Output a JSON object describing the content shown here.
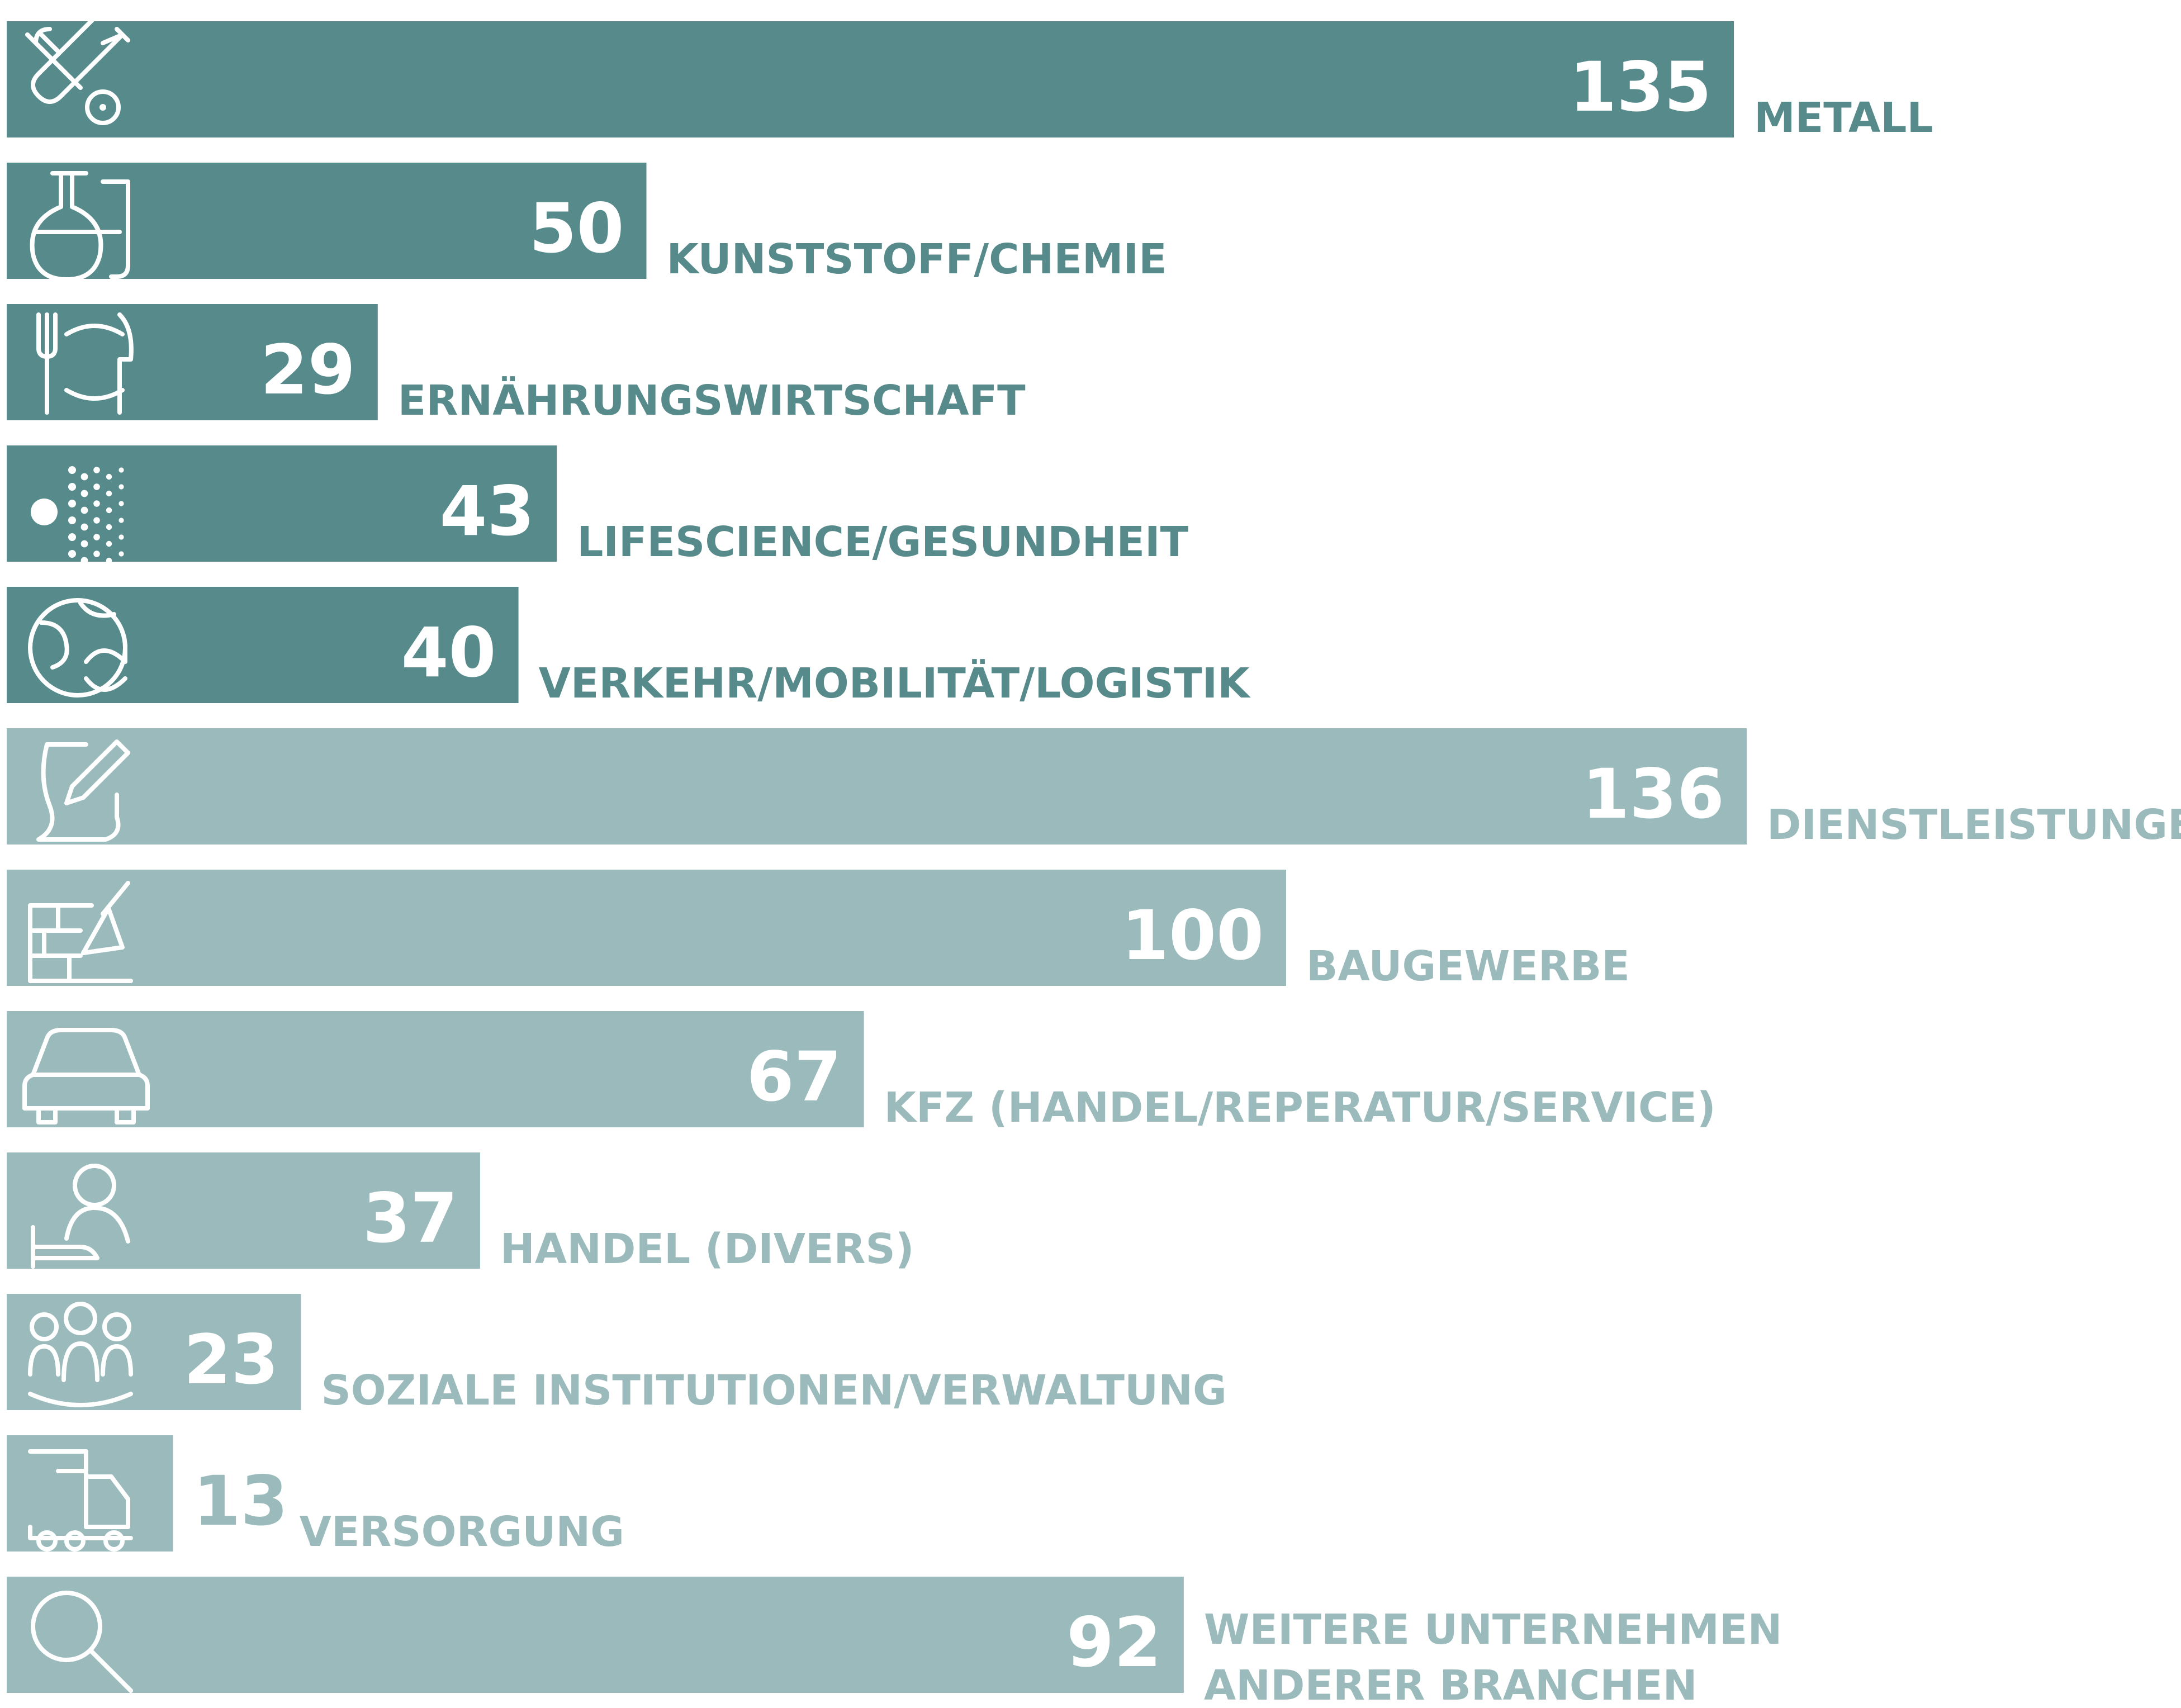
{
  "colors": {
    "dark_bar": "#568a8b",
    "light_bar": "#9ababb",
    "bar_text": "#ffffff",
    "dark_label": "#568a8b",
    "light_label": "#9ababb"
  },
  "chart_data": {
    "type": "bar",
    "orientation": "horizontal",
    "title": "",
    "xlabel": "",
    "ylabel": "",
    "categories": [
      "METALL",
      "KUNSTSTOFF/CHEMIE",
      "ERNÄHRUNGSWIRTSCHAFT",
      "LIFESCIENCE/GESUNDHEIT",
      "VERKEHR/MOBILITÄT/LOGISTIK",
      "DIENSTLEISTUNGEN",
      "BAUGEWERBE",
      "KFZ (HANDEL/REPERATUR/SERVICE)",
      "HANDEL (DIVERS)",
      "SOZIALE INSTITUTIONEN/VERWALTUNG",
      "VERSORGUNG",
      "WEITERE UNTERNEHMEN ANDERER BRANCHEN"
    ],
    "label_lines": [
      [
        "METALL"
      ],
      [
        "KUNSTSTOFF/CHEMIE"
      ],
      [
        "ERNÄHRUNGSWIRTSCHAFT"
      ],
      [
        "LIFESCIENCE/GESUNDHEIT"
      ],
      [
        "VERKEHR/MOBILITÄT/LOGISTIK"
      ],
      [
        "DIENSTLEISTUNGEN"
      ],
      [
        "BAUGEWERBE"
      ],
      [
        "KFZ (HANDEL/REPERATUR/SERVICE)"
      ],
      [
        "HANDEL (DIVERS)"
      ],
      [
        "SOZIALE INSTITUTIONEN/VERWALTUNG"
      ],
      [
        "VERSORGUNG"
      ],
      [
        "WEITERE UNTERNEHMEN",
        "ANDERER BRANCHEN"
      ]
    ],
    "values": [
      135,
      50,
      29,
      43,
      40,
      136,
      100,
      67,
      37,
      23,
      13,
      92
    ],
    "groups": [
      "dark",
      "dark",
      "dark",
      "dark",
      "dark",
      "light",
      "light",
      "light",
      "light",
      "light",
      "light",
      "light"
    ],
    "icons": [
      "tools-icon",
      "flask-icon",
      "cutlery-plate-icon",
      "molecule-dots-icon",
      "globe-refresh-icon",
      "document-pen-icon",
      "brick-trowel-icon",
      "car-icon",
      "person-hand-icon",
      "people-group-icon",
      "truck-icon",
      "magnifier-icon"
    ],
    "xlim": [
      0,
      136
    ],
    "grid": false,
    "legend": "none"
  }
}
